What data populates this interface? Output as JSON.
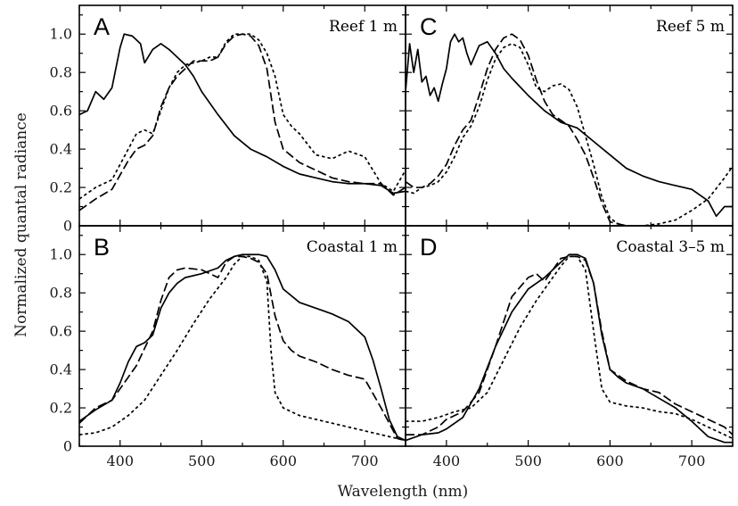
{
  "figure": {
    "ylabel": "Normalized quantal radiance",
    "xlabel": "Wavelength (nm)"
  },
  "chart_data": [
    {
      "type": "line",
      "panel": "A",
      "title": "Reef 1 m",
      "xlim": [
        350,
        750
      ],
      "ylim": [
        0,
        1.15
      ],
      "xticks": [
        400,
        500,
        600,
        700
      ],
      "yticks": [
        0,
        0.2,
        0.4,
        0.6,
        0.8,
        1.0
      ],
      "ytick_labels": [
        "0",
        "0.2",
        "0.4",
        "0.6",
        "0.8",
        "1.0"
      ],
      "series": [
        {
          "style": "solid",
          "x": [
            350,
            360,
            370,
            380,
            390,
            400,
            405,
            415,
            425,
            430,
            440,
            450,
            460,
            470,
            480,
            490,
            500,
            520,
            540,
            560,
            580,
            600,
            620,
            640,
            660,
            680,
            700,
            720,
            735,
            750
          ],
          "y": [
            0.58,
            0.6,
            0.7,
            0.66,
            0.72,
            0.93,
            1.0,
            0.99,
            0.95,
            0.85,
            0.92,
            0.95,
            0.92,
            0.88,
            0.84,
            0.78,
            0.7,
            0.58,
            0.47,
            0.4,
            0.36,
            0.31,
            0.27,
            0.25,
            0.23,
            0.22,
            0.22,
            0.21,
            0.17,
            0.18
          ]
        },
        {
          "style": "dashed",
          "x": [
            350,
            370,
            390,
            410,
            420,
            430,
            440,
            450,
            460,
            470,
            480,
            490,
            500,
            510,
            520,
            530,
            540,
            550,
            560,
            570,
            580,
            590,
            600,
            620,
            640,
            660,
            680,
            700,
            720,
            735,
            750
          ],
          "y": [
            0.08,
            0.14,
            0.19,
            0.34,
            0.4,
            0.42,
            0.47,
            0.62,
            0.72,
            0.78,
            0.82,
            0.86,
            0.86,
            0.86,
            0.88,
            0.95,
            0.99,
            1.0,
            0.99,
            0.94,
            0.82,
            0.54,
            0.4,
            0.33,
            0.29,
            0.25,
            0.23,
            0.22,
            0.22,
            0.16,
            0.2
          ]
        },
        {
          "style": "dotted",
          "x": [
            350,
            370,
            390,
            410,
            420,
            430,
            440,
            450,
            460,
            470,
            480,
            490,
            500,
            510,
            520,
            530,
            540,
            550,
            560,
            570,
            580,
            590,
            600,
            610,
            620,
            640,
            660,
            680,
            700,
            720,
            735,
            750
          ],
          "y": [
            0.14,
            0.2,
            0.24,
            0.4,
            0.48,
            0.5,
            0.48,
            0.6,
            0.72,
            0.8,
            0.84,
            0.85,
            0.86,
            0.88,
            0.88,
            0.96,
            1.0,
            1.0,
            1.0,
            0.97,
            0.9,
            0.78,
            0.58,
            0.52,
            0.48,
            0.37,
            0.35,
            0.39,
            0.36,
            0.22,
            0.18,
            0.29
          ]
        }
      ]
    },
    {
      "type": "line",
      "panel": "C",
      "title": "Reef 5 m",
      "xlim": [
        350,
        750
      ],
      "ylim": [
        0,
        1.15
      ],
      "xticks": [
        400,
        500,
        600,
        700
      ],
      "yticks": [
        0,
        0.2,
        0.4,
        0.6,
        0.8,
        1.0
      ],
      "series": [
        {
          "style": "solid",
          "x": [
            350,
            355,
            360,
            365,
            370,
            375,
            380,
            385,
            390,
            395,
            400,
            405,
            410,
            415,
            420,
            425,
            430,
            440,
            450,
            460,
            470,
            480,
            500,
            520,
            540,
            560,
            580,
            600,
            620,
            640,
            660,
            680,
            700,
            720,
            730,
            740,
            750
          ],
          "y": [
            0.7,
            0.95,
            0.8,
            0.92,
            0.75,
            0.78,
            0.68,
            0.72,
            0.65,
            0.74,
            0.82,
            0.96,
            1.0,
            0.96,
            0.98,
            0.9,
            0.84,
            0.94,
            0.96,
            0.9,
            0.82,
            0.77,
            0.68,
            0.6,
            0.54,
            0.51,
            0.44,
            0.37,
            0.3,
            0.26,
            0.23,
            0.21,
            0.19,
            0.13,
            0.05,
            0.1,
            0.1
          ]
        },
        {
          "style": "dashed",
          "x": [
            350,
            360,
            370,
            380,
            390,
            400,
            410,
            420,
            430,
            440,
            450,
            460,
            470,
            480,
            490,
            500,
            510,
            520,
            530,
            540,
            550,
            560,
            570,
            580,
            590,
            600,
            620,
            650,
            700,
            750
          ],
          "y": [
            0.23,
            0.2,
            0.2,
            0.22,
            0.26,
            0.32,
            0.42,
            0.5,
            0.55,
            0.68,
            0.82,
            0.92,
            0.98,
            1.0,
            0.97,
            0.89,
            0.76,
            0.65,
            0.58,
            0.55,
            0.52,
            0.45,
            0.37,
            0.25,
            0.12,
            0.02,
            0.0,
            0.0,
            0.0,
            0.0
          ]
        },
        {
          "style": "dotted",
          "x": [
            350,
            360,
            370,
            380,
            390,
            400,
            410,
            420,
            430,
            440,
            450,
            460,
            470,
            480,
            490,
            500,
            510,
            520,
            530,
            540,
            550,
            560,
            570,
            580,
            590,
            600,
            610,
            620,
            640,
            660,
            680,
            700,
            720,
            740,
            750
          ],
          "y": [
            0.18,
            0.17,
            0.2,
            0.21,
            0.23,
            0.28,
            0.36,
            0.46,
            0.52,
            0.62,
            0.76,
            0.87,
            0.93,
            0.95,
            0.93,
            0.84,
            0.72,
            0.7,
            0.73,
            0.74,
            0.71,
            0.62,
            0.47,
            0.32,
            0.15,
            0.04,
            0.01,
            0.0,
            0.0,
            0.01,
            0.03,
            0.08,
            0.14,
            0.25,
            0.31
          ]
        }
      ]
    },
    {
      "type": "line",
      "panel": "B",
      "title": "Coastal 1 m",
      "xlim": [
        350,
        750
      ],
      "ylim": [
        0,
        1.15
      ],
      "xticks": [
        400,
        500,
        600,
        700
      ],
      "yticks": [
        0,
        0.2,
        0.4,
        0.6,
        0.8,
        1.0
      ],
      "ytick_labels": [
        "0",
        "0.2",
        "0.4",
        "0.6",
        "0.8",
        "1.0"
      ],
      "series": [
        {
          "style": "solid",
          "x": [
            350,
            370,
            390,
            400,
            410,
            420,
            430,
            440,
            450,
            460,
            470,
            480,
            500,
            520,
            530,
            540,
            550,
            560,
            570,
            580,
            590,
            600,
            620,
            640,
            660,
            680,
            700,
            710,
            720,
            730,
            740,
            750
          ],
          "y": [
            0.13,
            0.19,
            0.24,
            0.33,
            0.44,
            0.52,
            0.54,
            0.58,
            0.72,
            0.8,
            0.85,
            0.88,
            0.9,
            0.93,
            0.97,
            0.99,
            1.0,
            1.0,
            1.0,
            0.99,
            0.92,
            0.82,
            0.75,
            0.72,
            0.69,
            0.65,
            0.57,
            0.45,
            0.3,
            0.14,
            0.05,
            0.03
          ]
        },
        {
          "style": "dashed",
          "x": [
            350,
            370,
            390,
            400,
            410,
            420,
            440,
            450,
            460,
            470,
            480,
            500,
            520,
            530,
            540,
            550,
            560,
            570,
            580,
            590,
            600,
            610,
            620,
            640,
            660,
            680,
            700,
            720,
            740,
            750
          ],
          "y": [
            0.12,
            0.2,
            0.24,
            0.3,
            0.36,
            0.42,
            0.6,
            0.76,
            0.88,
            0.92,
            0.93,
            0.92,
            0.88,
            0.96,
            0.99,
            0.99,
            0.98,
            0.96,
            0.9,
            0.68,
            0.55,
            0.5,
            0.47,
            0.44,
            0.4,
            0.37,
            0.35,
            0.2,
            0.04,
            0.03
          ]
        },
        {
          "style": "dotted",
          "x": [
            350,
            370,
            390,
            410,
            430,
            450,
            470,
            490,
            510,
            530,
            540,
            550,
            560,
            570,
            580,
            585,
            590,
            600,
            620,
            640,
            660,
            680,
            700,
            720,
            740,
            750
          ],
          "y": [
            0.06,
            0.07,
            0.1,
            0.16,
            0.24,
            0.37,
            0.5,
            0.64,
            0.77,
            0.88,
            0.95,
            0.99,
            0.99,
            0.97,
            0.86,
            0.5,
            0.28,
            0.2,
            0.16,
            0.14,
            0.12,
            0.1,
            0.08,
            0.06,
            0.04,
            0.03
          ]
        }
      ]
    },
    {
      "type": "line",
      "panel": "D",
      "title": "Coastal 3–5 m",
      "xlim": [
        350,
        750
      ],
      "ylim": [
        0,
        1.15
      ],
      "xticks": [
        400,
        500,
        600,
        700
      ],
      "yticks": [
        0,
        0.2,
        0.4,
        0.6,
        0.8,
        1.0
      ],
      "series": [
        {
          "style": "solid",
          "x": [
            350,
            370,
            390,
            400,
            420,
            440,
            460,
            480,
            500,
            520,
            540,
            550,
            560,
            570,
            580,
            590,
            600,
            610,
            620,
            640,
            660,
            680,
            700,
            720,
            740,
            750
          ],
          "y": [
            0.03,
            0.06,
            0.07,
            0.09,
            0.15,
            0.3,
            0.52,
            0.7,
            0.82,
            0.88,
            0.96,
            1.0,
            1.0,
            0.98,
            0.85,
            0.58,
            0.4,
            0.36,
            0.33,
            0.3,
            0.25,
            0.2,
            0.13,
            0.05,
            0.02,
            0.02
          ]
        },
        {
          "style": "dashed",
          "x": [
            350,
            370,
            390,
            400,
            420,
            440,
            460,
            480,
            500,
            510,
            520,
            530,
            540,
            550,
            560,
            570,
            580,
            590,
            600,
            620,
            640,
            660,
            680,
            700,
            720,
            740,
            750
          ],
          "y": [
            0.06,
            0.06,
            0.1,
            0.14,
            0.18,
            0.28,
            0.52,
            0.78,
            0.88,
            0.9,
            0.86,
            0.92,
            0.98,
            0.99,
            0.99,
            0.97,
            0.85,
            0.6,
            0.4,
            0.34,
            0.3,
            0.28,
            0.22,
            0.18,
            0.14,
            0.1,
            0.06
          ]
        },
        {
          "style": "dotted",
          "x": [
            350,
            370,
            390,
            410,
            430,
            450,
            470,
            490,
            510,
            530,
            540,
            550,
            560,
            570,
            580,
            590,
            600,
            620,
            640,
            660,
            680,
            700,
            720,
            740,
            750
          ],
          "y": [
            0.13,
            0.13,
            0.15,
            0.18,
            0.2,
            0.28,
            0.45,
            0.62,
            0.76,
            0.88,
            0.94,
            0.99,
            0.99,
            0.92,
            0.6,
            0.3,
            0.23,
            0.21,
            0.2,
            0.18,
            0.17,
            0.14,
            0.1,
            0.06,
            0.04
          ]
        }
      ]
    }
  ]
}
